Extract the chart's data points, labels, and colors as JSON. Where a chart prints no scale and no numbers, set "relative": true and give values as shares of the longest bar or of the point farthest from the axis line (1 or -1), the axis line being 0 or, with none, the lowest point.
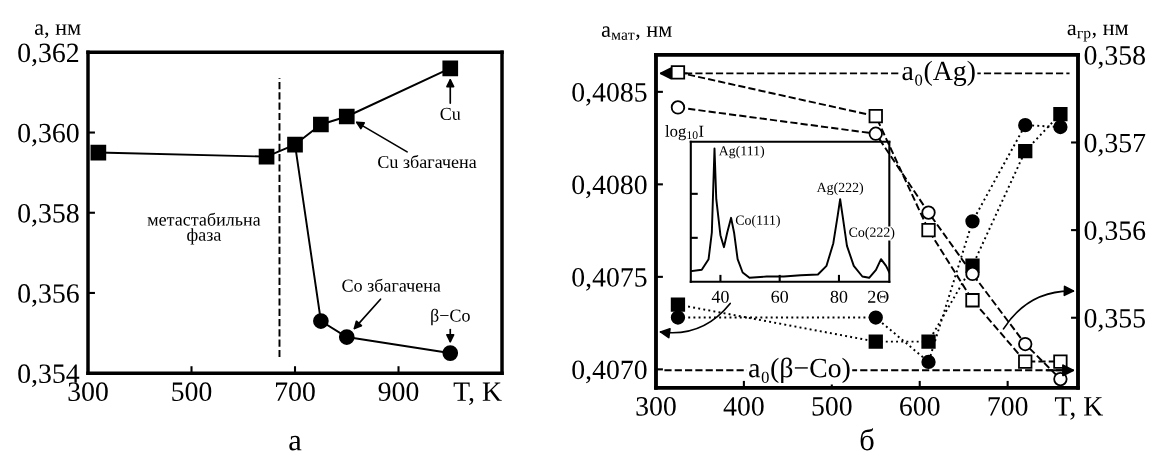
{
  "chart_data": [
    {
      "type": "line",
      "subtitle": "а",
      "xlabel": "T, K",
      "ylabel": "a, нм",
      "xlim": [
        300,
        1100
      ],
      "xticks": [
        300,
        500,
        700,
        900
      ],
      "ylim": [
        0.354,
        0.362
      ],
      "yticks": [
        {
          "value": 0.354,
          "label": "0,354"
        },
        {
          "value": 0.356,
          "label": "0,356"
        },
        {
          "value": 0.358,
          "label": "0,358"
        },
        {
          "value": 0.36,
          "label": "0,360"
        },
        {
          "value": 0.362,
          "label": "0,362"
        }
      ],
      "series": [
        {
          "x": [
            320,
            645,
            700,
            750,
            800,
            1000
          ],
          "values": [
            0.3595,
            0.3594,
            0.3597,
            0.3602,
            0.3604,
            0.3616
          ],
          "color": "#000000",
          "marker": "square",
          "line_style": "solid"
        },
        {
          "x": [
            700,
            750
          ],
          "values": [
            0.3597,
            0.3553
          ],
          "color": "#000000",
          "line_style": "solid"
        },
        {
          "x": [
            750,
            800,
            1000
          ],
          "values": [
            0.3553,
            0.3549,
            0.3545
          ],
          "color": "#000000",
          "marker": "circle",
          "line_style": "solid"
        }
      ],
      "ref_lines": [
        {
          "axis": "x",
          "value": 670,
          "line_style": "dashed",
          "color": "#000000"
        }
      ],
      "annotations": [
        "метастабильна\nфаза",
        {
          "text": "Cu збагачена",
          "x": 800,
          "y": 0.3604
        },
        {
          "text": "Cu",
          "x": 1000,
          "y": 0.3616
        },
        {
          "text": "Co збагачена",
          "x": 800,
          "y": 0.3549
        },
        {
          "text": "β−Co",
          "x": 1000,
          "y": 0.3545
        }
      ],
      "grid": false,
      "legend": false
    },
    {
      "type": "line",
      "subtitle": "б",
      "xlabel": "T, K",
      "ylabel": "a$_{мат}$, нм",
      "y2label": "a$_{гр}$, нм",
      "xlim": [
        300,
        780
      ],
      "xticks": [
        300,
        400,
        500,
        600,
        700
      ],
      "ylim": [
        0.4069,
        0.4087
      ],
      "yticks": [
        {
          "value": 0.407,
          "label": "0,4070"
        },
        {
          "value": 0.4075,
          "label": "0,4075"
        },
        {
          "value": 0.408,
          "label": "0,4080"
        },
        {
          "value": 0.4085,
          "label": "0,4085"
        }
      ],
      "y2lim": [
        0.3542,
        0.358
      ],
      "y2ticks": [
        {
          "value": 0.355,
          "label": "0,355"
        },
        {
          "value": 0.356,
          "label": "0,356"
        },
        {
          "value": 0.357,
          "label": "0,357"
        },
        {
          "value": 0.358,
          "label": "0,358"
        }
      ],
      "series": [
        {
          "x": [
            325,
            550,
            610,
            660,
            720,
            760
          ],
          "values": [
            0.40735,
            0.40715,
            0.40715,
            0.40756,
            0.40818,
            0.40838
          ],
          "color": "#000000",
          "marker": "square",
          "line_style": "dotted"
        },
        {
          "x": [
            325,
            550,
            610,
            660,
            720,
            760
          ],
          "values": [
            0.40728,
            0.40728,
            0.40704,
            0.4078,
            0.40832,
            0.40831
          ],
          "color": "#000000",
          "marker": "circle",
          "line_style": "dotted"
        },
        {
          "x": [
            325,
            550,
            610,
            660,
            720,
            760
          ],
          "values": [
            0.3578,
            0.3573,
            0.356,
            0.3552,
            0.3545,
            0.3545
          ],
          "color": "#000000",
          "marker": "square",
          "line_style": "dashed",
          "axis": "y2"
        },
        {
          "x": [
            325,
            550,
            610,
            660,
            720,
            760
          ],
          "values": [
            0.3574,
            0.3571,
            0.3562,
            0.3555,
            0.3547,
            0.3543
          ],
          "color": "#000000",
          "marker": "circle",
          "line_style": "dashed",
          "axis": "y2"
        }
      ],
      "ref_lines": [
        {
          "axis": "y",
          "value": 0.4086,
          "label": "a₀(Ag)",
          "line_style": "dashed",
          "color": "#000000"
        },
        {
          "axis": "y2",
          "value": 0.3544,
          "label": "a₀(β−Co)",
          "line_style": "dashed",
          "color": "#000000"
        }
      ],
      "grid": false,
      "legend": false
    },
    {
      "type": "line",
      "relative": true,
      "xlabel": "2Θ",
      "ylabel": "log$_{10}$I",
      "tick_labels": "x",
      "xlim": [
        30,
        97
      ],
      "xticks": [
        40,
        60,
        80
      ],
      "series": [
        {
          "x": [
            30,
            33.7,
            36,
            37.1,
            38,
            38.6,
            40,
            41.2,
            42.3,
            43.6,
            44.6,
            45.8,
            47.5,
            49.8,
            55.6,
            61.4,
            67.1,
            72.9,
            75.8,
            78.1,
            79.6,
            80.4,
            81.2,
            82.7,
            85,
            87.9,
            90.2,
            92.5,
            94.2,
            95.9,
            97
          ],
          "values": [
            0.08,
            0.09,
            0.17,
            0.37,
            1.0,
            0.62,
            0.35,
            0.26,
            0.37,
            0.48,
            0.37,
            0.17,
            0.07,
            0.03,
            0.04,
            0.04,
            0.05,
            0.055,
            0.12,
            0.29,
            0.5,
            0.62,
            0.5,
            0.27,
            0.12,
            0.04,
            0.03,
            0.09,
            0.17,
            0.12,
            0.07
          ],
          "color": "#000000",
          "marker": "none",
          "line_style": "solid"
        }
      ],
      "annotations": [
        {
          "text": "Ag(111)",
          "x": 38,
          "y": 1.0
        },
        {
          "text": "Co(111)",
          "x": 43.6,
          "y": 0.48
        },
        {
          "text": "Ag(222)",
          "x": 80.4,
          "y": 0.62
        },
        {
          "text": "Co(222)",
          "x": 94.2,
          "y": 0.17
        }
      ],
      "grid": false,
      "legend": false
    }
  ]
}
